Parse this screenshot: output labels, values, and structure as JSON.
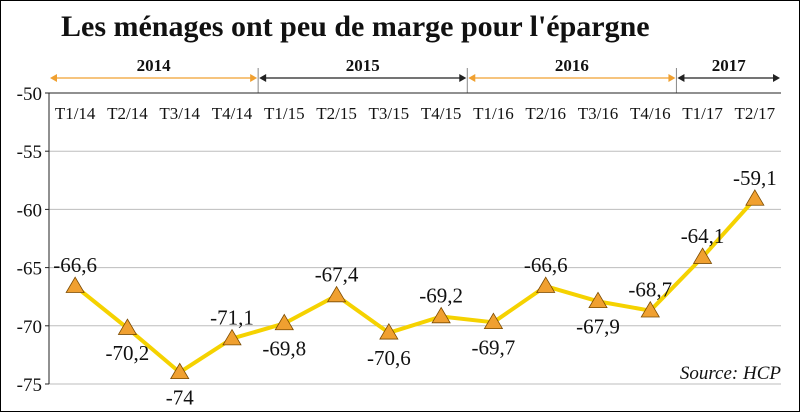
{
  "chart_data": {
    "type": "line",
    "title": "Les ménages ont peu de marge pour l'épargne",
    "source": "Source: HCP",
    "years": [
      {
        "label": "2014",
        "from": "T1/14",
        "to": "T4/14",
        "color": "#f0a030"
      },
      {
        "label": "2015",
        "from": "T1/15",
        "to": "T4/15",
        "color": "#222222"
      },
      {
        "label": "2016",
        "from": "T1/16",
        "to": "T4/16",
        "color": "#f0a030"
      },
      {
        "label": "2017",
        "from": "T1/17",
        "to": "T2/17",
        "color": "#222222"
      }
    ],
    "categories": [
      "T1/14",
      "T2/14",
      "T3/14",
      "T4/14",
      "T1/15",
      "T2/15",
      "T3/15",
      "T4/15",
      "T1/16",
      "T2/16",
      "T3/16",
      "T4/16",
      "T1/17",
      "T2/17"
    ],
    "values": [
      -66.6,
      -70.2,
      -74,
      -71.1,
      -69.8,
      -67.4,
      -70.6,
      -69.2,
      -69.7,
      -66.6,
      -67.9,
      -68.7,
      -64.1,
      -59.1
    ],
    "labels": [
      "-66,6",
      "-70,2",
      "-74",
      "-71,1",
      "-69,8",
      "-67,4",
      "-70,6",
      "-69,2",
      "-69,7",
      "-66,6",
      "-67,9",
      "-68,7",
      "-64,1",
      "-59,1"
    ],
    "label_position": [
      "above",
      "below",
      "below",
      "above",
      "below",
      "above",
      "below",
      "above",
      "below",
      "above",
      "below",
      "above",
      "above",
      "above"
    ],
    "yticks": [
      -50,
      -55,
      -60,
      -65,
      -70,
      -75
    ],
    "ytick_labels": [
      "-50",
      "-55",
      "-60",
      "-65",
      "-70",
      "-75"
    ],
    "ylim": [
      -75,
      -50
    ],
    "line_color": "#f5d200",
    "marker_color": "#f0a030",
    "grid": true
  }
}
